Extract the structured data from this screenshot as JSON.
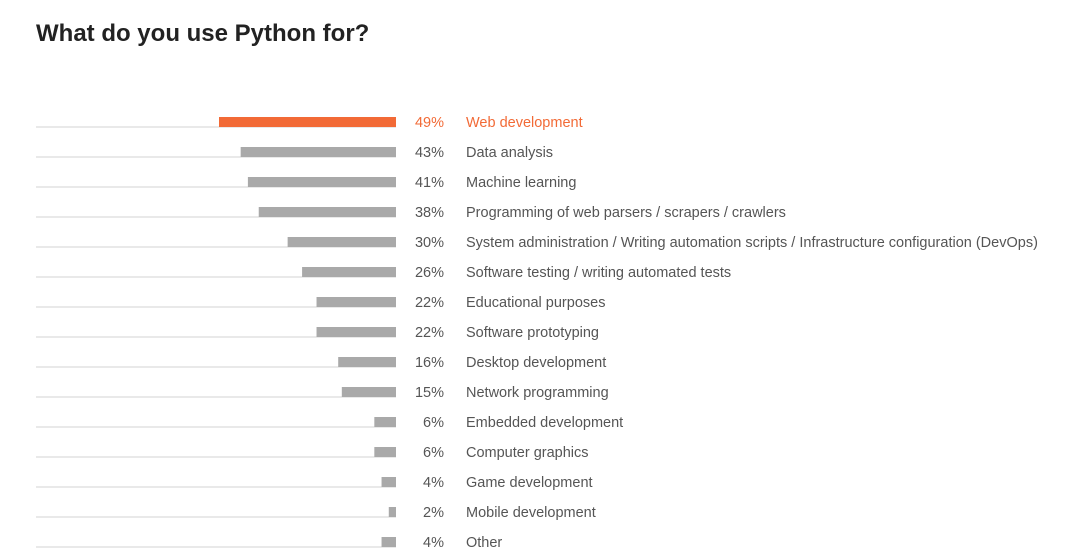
{
  "title": "What do you use Python for?",
  "colors": {
    "highlight": "#f26a36",
    "bar": "#a9a9a9",
    "baseline": "#d3d3d3",
    "text": "#555555"
  },
  "chart_data": {
    "type": "bar",
    "orientation": "horizontal",
    "unit": "%",
    "xlim": [
      0,
      49
    ],
    "highlight_index": 0,
    "categories": [
      "Web development",
      "Data analysis",
      "Machine learning",
      "Programming of web parsers / scrapers / crawlers",
      "System administration / Writing automation scripts / Infrastructure configuration (DevOps)",
      "Software testing / writing automated tests",
      "Educational purposes",
      "Software prototyping",
      "Desktop development",
      "Network programming",
      "Embedded development",
      "Computer graphics",
      "Game development",
      "Mobile development",
      "Other"
    ],
    "values": [
      49,
      43,
      41,
      38,
      30,
      26,
      22,
      22,
      16,
      15,
      6,
      6,
      4,
      2,
      4
    ],
    "value_labels": [
      "49%",
      "43%",
      "41%",
      "38%",
      "30%",
      "26%",
      "22%",
      "22%",
      "16%",
      "15%",
      "6%",
      "6%",
      "4%",
      "2%",
      "4%"
    ]
  }
}
